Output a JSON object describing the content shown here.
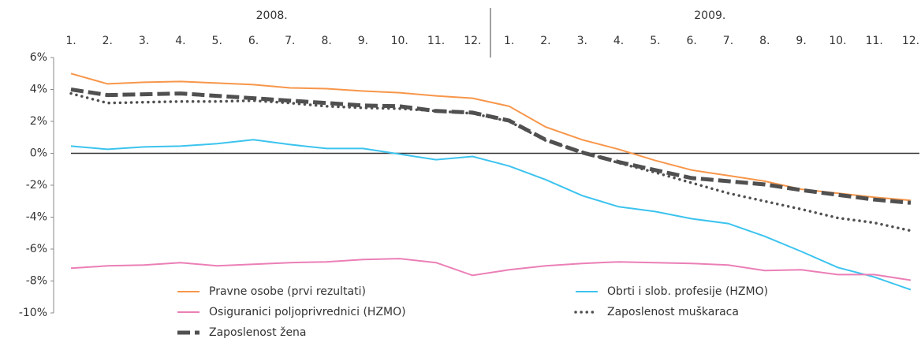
{
  "chart_data": {
    "type": "line",
    "year_labels": [
      "2008.",
      "2009."
    ],
    "categories": [
      "1.",
      "2.",
      "3.",
      "4.",
      "5.",
      "6.",
      "7.",
      "8.",
      "9.",
      "10.",
      "11.",
      "12.",
      "1.",
      "2.",
      "3.",
      "4.",
      "5.",
      "6.",
      "7.",
      "8.",
      "9.",
      "10.",
      "11.",
      "12."
    ],
    "ylim": [
      -10,
      6
    ],
    "yticks": [
      {
        "value": -10,
        "label": "-10%"
      },
      {
        "value": -8,
        "label": "-8%"
      },
      {
        "value": -6,
        "label": "-6%"
      },
      {
        "value": -4,
        "label": "-4%"
      },
      {
        "value": -2,
        "label": "-2%"
      },
      {
        "value": 0,
        "label": "0%"
      },
      {
        "value": 2,
        "label": "2%"
      },
      {
        "value": 4,
        "label": "4%"
      },
      {
        "value": 6,
        "label": "6%"
      }
    ],
    "grid": false,
    "series": [
      {
        "name": "Pravne osobe (prvi rezultati)",
        "color": "#f7964a",
        "style": "solid",
        "values": [
          5.0,
          4.35,
          4.45,
          4.5,
          4.4,
          4.3,
          4.1,
          4.05,
          3.9,
          3.8,
          3.6,
          3.45,
          2.95,
          1.65,
          0.85,
          0.25,
          -0.45,
          -1.05,
          -1.4,
          -1.75,
          -2.25,
          -2.5,
          -2.75,
          -2.95
        ]
      },
      {
        "name": "Obrti i slob. profesije (HZMO)",
        "color": "#3cc3ee",
        "style": "solid",
        "values": [
          0.45,
          0.25,
          0.4,
          0.45,
          0.6,
          0.85,
          0.55,
          0.3,
          0.3,
          -0.05,
          -0.4,
          -0.2,
          -0.8,
          -1.65,
          -2.65,
          -3.35,
          -3.65,
          -4.1,
          -4.4,
          -5.2,
          -6.15,
          -7.15,
          -7.75,
          -8.55
        ]
      },
      {
        "name": "Osiguranici poljoprivrednici (HZMO)",
        "color": "#eb7fb6",
        "style": "solid",
        "values": [
          -7.2,
          -7.05,
          -7.0,
          -6.85,
          -7.05,
          -6.95,
          -6.85,
          -6.8,
          -6.65,
          -6.6,
          -6.85,
          -7.65,
          -7.3,
          -7.05,
          -6.9,
          -6.8,
          -6.85,
          -6.9,
          -7.0,
          -7.35,
          -7.3,
          -7.6,
          -7.6,
          -7.95
        ]
      },
      {
        "name": "Zaposlenost muškaraca",
        "color": "#505050",
        "style": "dotted",
        "values": [
          3.75,
          3.15,
          3.2,
          3.25,
          3.25,
          3.3,
          3.15,
          2.95,
          2.85,
          2.8,
          2.65,
          2.5,
          2.0,
          0.8,
          0.1,
          -0.6,
          -1.2,
          -1.85,
          -2.5,
          -3.0,
          -3.5,
          -4.05,
          -4.35,
          -4.85
        ]
      },
      {
        "name": "Zaposlenost žena",
        "color": "#505050",
        "style": "dashed",
        "values": [
          4.0,
          3.65,
          3.7,
          3.75,
          3.6,
          3.45,
          3.3,
          3.15,
          3.0,
          2.95,
          2.65,
          2.55,
          2.05,
          0.85,
          0.05,
          -0.55,
          -1.05,
          -1.55,
          -1.75,
          -1.95,
          -2.3,
          -2.6,
          -2.9,
          -3.1
        ]
      }
    ]
  }
}
